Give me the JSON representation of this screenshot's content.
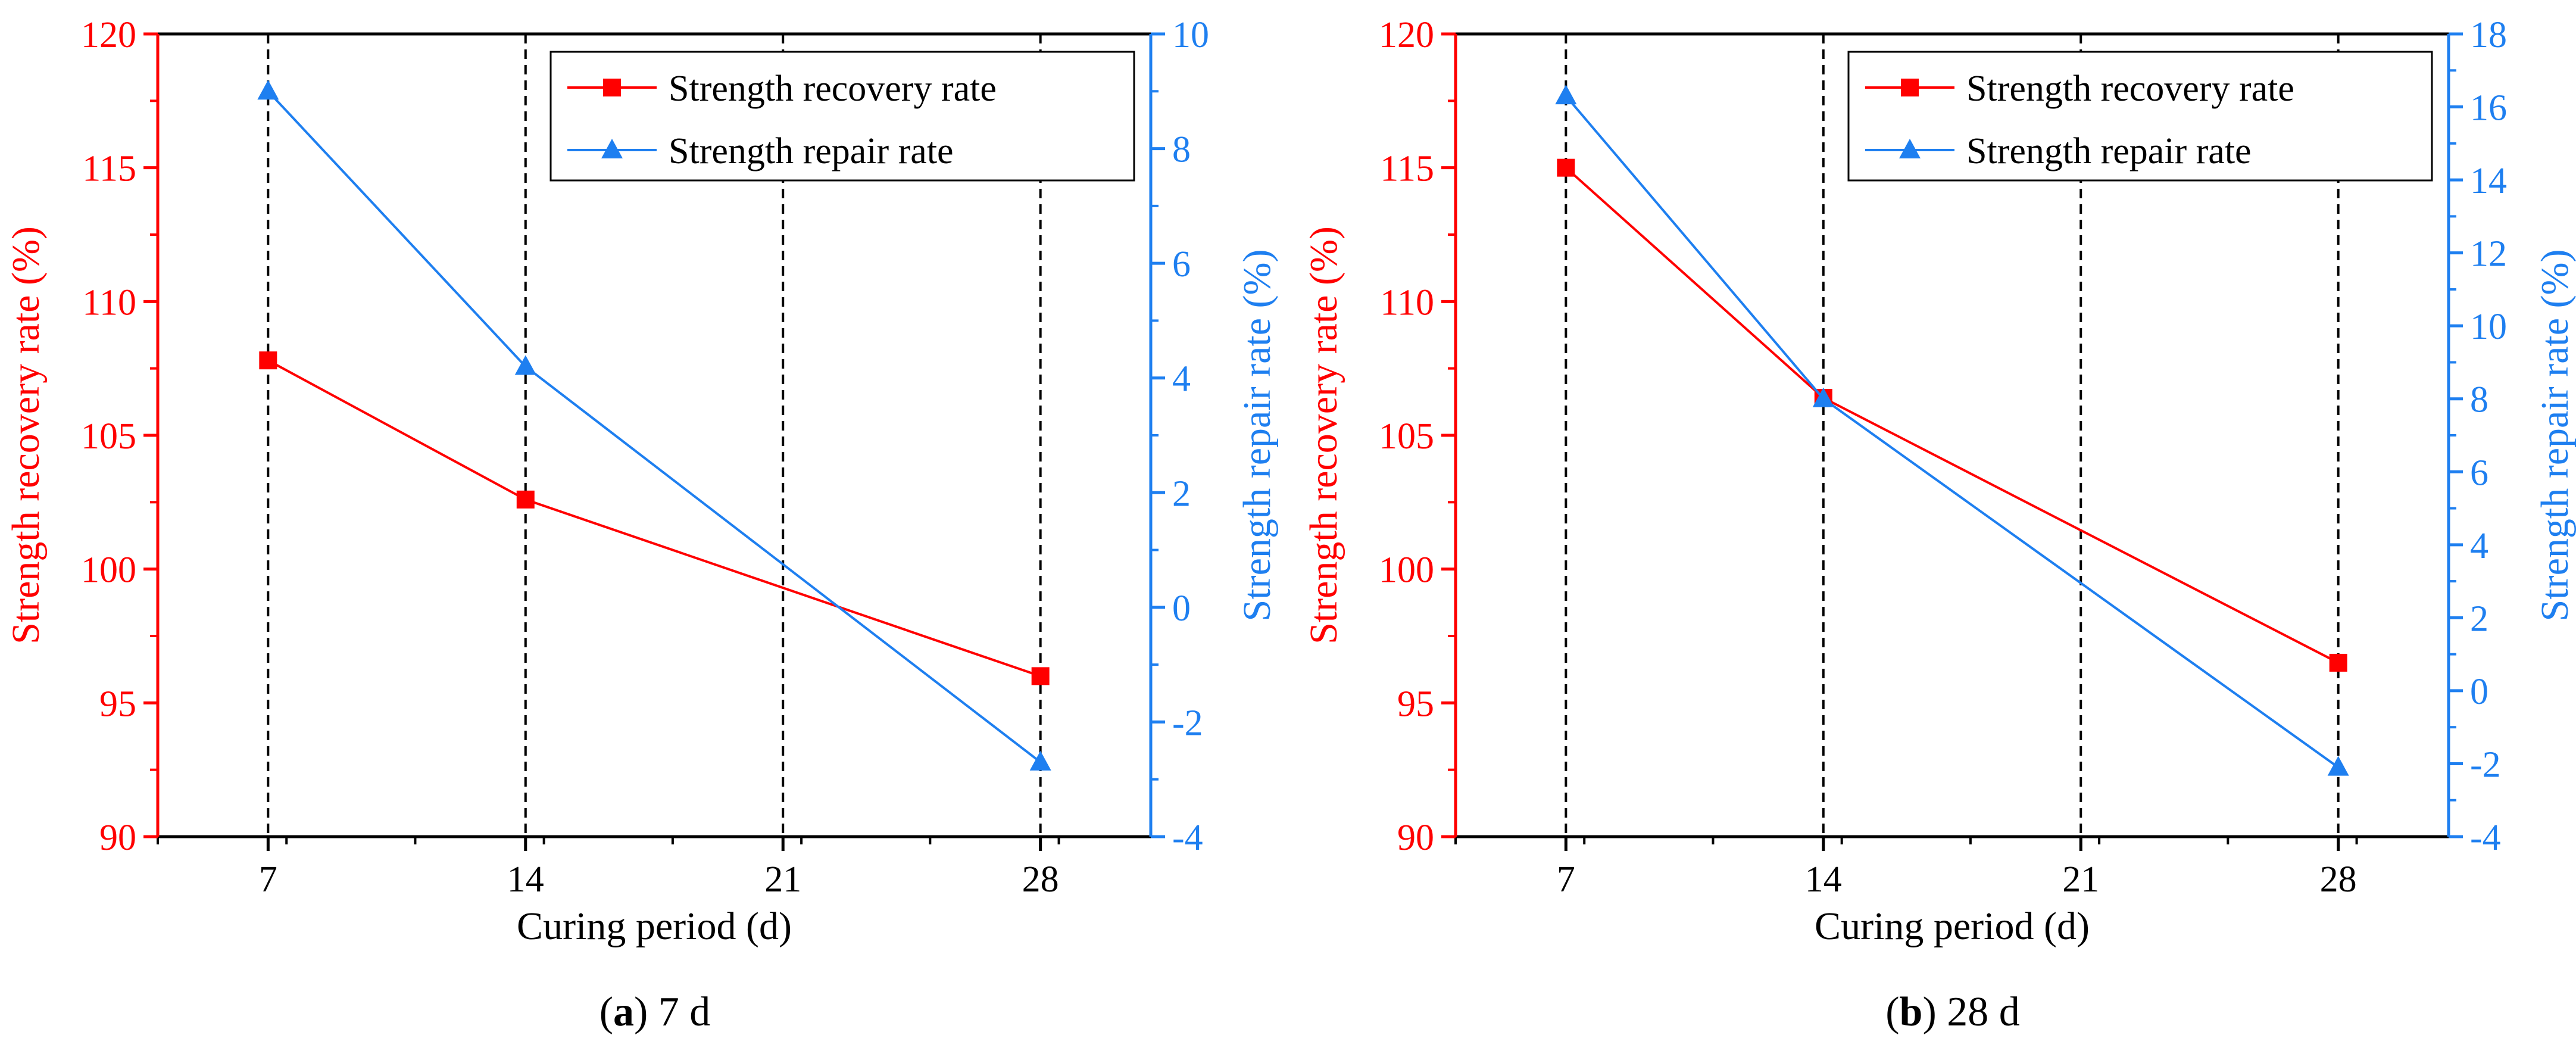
{
  "colors": {
    "recovery": "#ff0000",
    "repair": "#1e7ff0",
    "axis": "#000000",
    "grid": "#000000"
  },
  "chart_data": [
    {
      "type": "line",
      "panel_label": "a",
      "caption": "7 d",
      "xlabel": "Curing period (d)",
      "ylabel_left": "Strength recovery rate (%)",
      "ylabel_right": "Strength repair rate (%)",
      "xlim": [
        4,
        31
      ],
      "x_ticks": [
        7,
        14,
        21,
        28
      ],
      "x_tick_labels": [
        "7",
        "14",
        "21",
        "28"
      ],
      "ylim_left": [
        90,
        120
      ],
      "y_ticks_left": [
        90,
        95,
        100,
        105,
        110,
        115,
        120
      ],
      "y_tick_labels_left": [
        "90",
        "95",
        "100",
        "105",
        "110",
        "115",
        "120"
      ],
      "ylim_right": [
        -4,
        10
      ],
      "y_ticks_right": [
        -4,
        -2,
        0,
        2,
        4,
        6,
        8,
        10
      ],
      "y_tick_labels_right": [
        "-4",
        "-2",
        "0",
        "2",
        "4",
        "6",
        "8",
        "10"
      ],
      "dashed_vlines": [
        7,
        14,
        21,
        28
      ],
      "legend_position": "top-right",
      "series": [
        {
          "name": "Strength recovery rate",
          "axis": "left",
          "marker": "square",
          "x": [
            7,
            14,
            28
          ],
          "values": [
            107.8,
            102.6,
            96.0
          ]
        },
        {
          "name": "Strength repair rate",
          "axis": "right",
          "marker": "triangle",
          "x": [
            7,
            14,
            28
          ],
          "values": [
            9.0,
            4.2,
            -2.7
          ]
        }
      ]
    },
    {
      "type": "line",
      "panel_label": "b",
      "caption": "28 d",
      "xlabel": "Curing period (d)",
      "ylabel_left": "Strength recovery rate (%)",
      "ylabel_right": "Strength repair rate (%)",
      "xlim": [
        4,
        31
      ],
      "x_ticks": [
        7,
        14,
        21,
        28
      ],
      "x_tick_labels": [
        "7",
        "14",
        "21",
        "28"
      ],
      "ylim_left": [
        90,
        120
      ],
      "y_ticks_left": [
        90,
        95,
        100,
        105,
        110,
        115,
        120
      ],
      "y_tick_labels_left": [
        "90",
        "95",
        "100",
        "105",
        "110",
        "115",
        "120"
      ],
      "ylim_right": [
        -4,
        18
      ],
      "y_ticks_right": [
        -4,
        -2,
        0,
        2,
        4,
        6,
        8,
        10,
        12,
        14,
        16,
        18
      ],
      "y_tick_labels_right": [
        "-4",
        "-2",
        "0",
        "2",
        "4",
        "6",
        "8",
        "10",
        "12",
        "14",
        "16",
        "18"
      ],
      "dashed_vlines": [
        7,
        14,
        21,
        28
      ],
      "legend_position": "top-right",
      "series": [
        {
          "name": "Strength recovery rate",
          "axis": "left",
          "marker": "square",
          "x": [
            7,
            14,
            28
          ],
          "values": [
            115.0,
            106.4,
            96.5
          ]
        },
        {
          "name": "Strength repair rate",
          "axis": "right",
          "marker": "triangle",
          "x": [
            7,
            14,
            28
          ],
          "values": [
            16.3,
            8.0,
            -2.1
          ]
        }
      ]
    }
  ]
}
